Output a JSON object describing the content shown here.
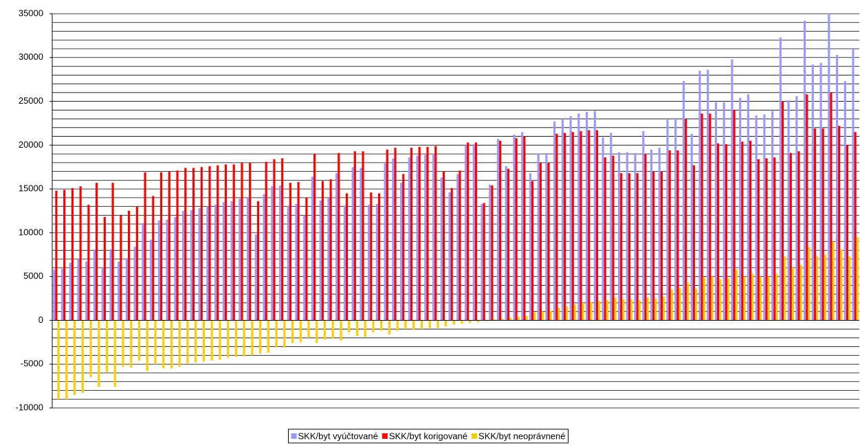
{
  "chart_data": {
    "type": "bar",
    "ylim": [
      -10000,
      35000
    ],
    "yticks": [
      -10000,
      -5000,
      0,
      5000,
      10000,
      15000,
      20000,
      25000,
      30000,
      35000
    ],
    "minor_yticks": [
      -9000,
      -8000,
      -7000,
      -6000,
      -4000,
      -3000,
      -2000,
      -1000,
      1000,
      2000,
      3000,
      4000,
      6000,
      7000,
      8000,
      9000,
      11000,
      12000,
      13000,
      14000,
      16000,
      17000,
      18000,
      19000,
      21000,
      22000,
      23000,
      24000,
      26000,
      27000,
      28000,
      29000,
      31000,
      32000,
      33000,
      34000
    ],
    "grid": true,
    "legend": "bottom",
    "series": [
      {
        "name": "SKK/byt vyúčtované",
        "color": "#9999ff",
        "values": [
          5800,
          5900,
          6600,
          7000,
          6700,
          8100,
          5900,
          8100,
          6700,
          7100,
          8400,
          11100,
          9200,
          11400,
          11500,
          11800,
          12500,
          12600,
          12800,
          13000,
          13200,
          13500,
          13600,
          13900,
          14000,
          9800,
          14400,
          15300,
          15400,
          13100,
          13300,
          12000,
          16400,
          13700,
          14000,
          16800,
          13100,
          17500,
          17400,
          13200,
          13300,
          17900,
          18500,
          15700,
          18600,
          18800,
          18900,
          19000,
          16300,
          14600,
          16700,
          20000,
          20100,
          13300,
          15500,
          20700,
          17600,
          21200,
          21500,
          16800,
          19000,
          19100,
          22700,
          23000,
          23300,
          23600,
          23800,
          23900,
          20900,
          21400,
          19200,
          19200,
          19100,
          21600,
          19500,
          19700,
          22900,
          23100,
          27300,
          21300,
          28500,
          28600,
          24900,
          24900,
          29800,
          25400,
          25800,
          23400,
          23500,
          23900,
          32300,
          25100,
          25600,
          34200,
          29200,
          29400,
          35000,
          30300,
          27300,
          31000
        ]
      },
      {
        "name": "SKK/byt korigované",
        "color": "#ff0000",
        "values": [
          14800,
          14900,
          15100,
          15300,
          13200,
          15700,
          11800,
          15700,
          12000,
          12500,
          13000,
          16900,
          14200,
          16900,
          17000,
          17100,
          17400,
          17400,
          17500,
          17600,
          17700,
          17800,
          17800,
          18000,
          18000,
          13600,
          18100,
          18400,
          18500,
          15700,
          15800,
          14000,
          19000,
          15900,
          16100,
          19100,
          14500,
          19300,
          19300,
          14600,
          14500,
          19500,
          19700,
          16700,
          19700,
          19800,
          19800,
          19900,
          17000,
          15100,
          17100,
          20300,
          20300,
          13400,
          15400,
          20500,
          17300,
          20800,
          21000,
          15900,
          18000,
          18000,
          21300,
          21400,
          21500,
          21600,
          21700,
          21700,
          18600,
          18800,
          16800,
          16800,
          16800,
          19000,
          17000,
          17000,
          19400,
          19400,
          23000,
          17700,
          23600,
          23600,
          20200,
          20100,
          24000,
          20400,
          20500,
          18400,
          18500,
          18600,
          25000,
          19100,
          19300,
          25800,
          21900,
          21900,
          26000,
          22200,
          20000,
          21500
        ]
      },
      {
        "name": "SKK/byt neoprávnené",
        "color": "#ffcc00",
        "values": [
          -9000,
          -9000,
          -8500,
          -8300,
          -6500,
          -7600,
          -5900,
          -7600,
          -5300,
          -5400,
          -4600,
          -5800,
          -5000,
          -5500,
          -5500,
          -5300,
          -4900,
          -4800,
          -4700,
          -4600,
          -4500,
          -4300,
          -4200,
          -4100,
          -4000,
          -3800,
          -3700,
          -3100,
          -3100,
          -2600,
          -2500,
          -2000,
          -2600,
          -2200,
          -2100,
          -2300,
          -1400,
          -1800,
          -1900,
          -1400,
          -1200,
          -1600,
          -1200,
          -1000,
          -1100,
          -1000,
          -900,
          -900,
          -700,
          -500,
          -400,
          -300,
          -200,
          -100,
          100,
          200,
          300,
          400,
          500,
          900,
          1000,
          1100,
          1400,
          1600,
          1800,
          2000,
          2100,
          2200,
          2300,
          2600,
          2400,
          2400,
          2300,
          2600,
          2500,
          2700,
          3500,
          3700,
          4300,
          3600,
          4900,
          5000,
          4700,
          4800,
          5800,
          5000,
          5300,
          5000,
          5000,
          5300,
          7300,
          6000,
          6300,
          8400,
          7300,
          7500,
          9000,
          8100,
          7300,
          9500
        ]
      }
    ]
  }
}
